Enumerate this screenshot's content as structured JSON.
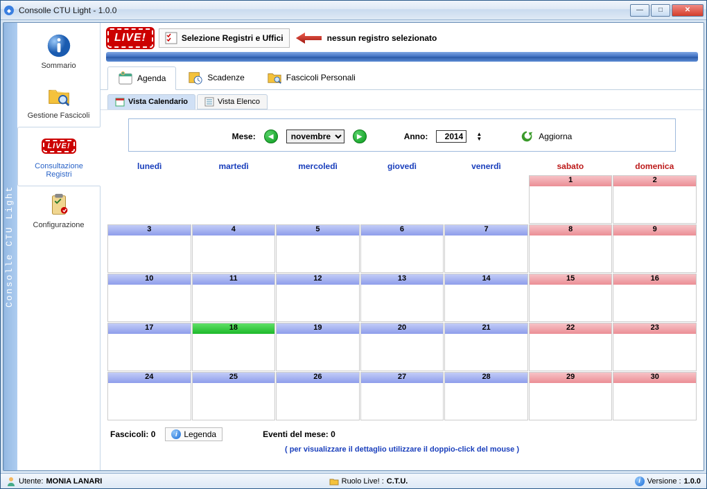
{
  "window": {
    "title": "Consolle CTU Light - 1.0.0"
  },
  "left_rail": "Consolle CTU Light",
  "sidebar": {
    "items": [
      {
        "label": "Sommario"
      },
      {
        "label": "Gestione Fascicoli"
      },
      {
        "label": "Consultazione Registri"
      },
      {
        "label": "Configurazione"
      }
    ]
  },
  "toolbar": {
    "live": "LIVE!",
    "selezione": "Selezione Registri e Uffici",
    "no_reg": "nessun registro selezionato"
  },
  "tabs1": {
    "agenda": "Agenda",
    "scadenze": "Scadenze",
    "fascicoli": "Fascicoli Personali"
  },
  "tabs2": {
    "calendario": "Vista Calendario",
    "elenco": "Vista Elenco"
  },
  "controls": {
    "mese_label": "Mese:",
    "month": "novembre",
    "anno_label": "Anno:",
    "year": "2014",
    "refresh": "Aggiorna"
  },
  "days": {
    "lun": "lunedì",
    "mar": "martedì",
    "mer": "mercoledì",
    "gio": "giovedì",
    "ven": "venerdì",
    "sab": "sabato",
    "dom": "domenica"
  },
  "calendar": {
    "today": 18,
    "weeks": [
      [
        "",
        "",
        "",
        "",
        "",
        "1",
        "2"
      ],
      [
        "3",
        "4",
        "5",
        "6",
        "7",
        "8",
        "9"
      ],
      [
        "10",
        "11",
        "12",
        "13",
        "14",
        "15",
        "16"
      ],
      [
        "17",
        "18",
        "19",
        "20",
        "21",
        "22",
        "23"
      ],
      [
        "24",
        "25",
        "26",
        "27",
        "28",
        "29",
        "30"
      ]
    ]
  },
  "footer": {
    "fascicoli": "Fascicoli:  0",
    "legenda": "Legenda",
    "eventi": "Eventi del mese:  0",
    "hint": "( per visualizzare il dettaglio utilizzare il doppio-click del mouse )"
  },
  "status": {
    "utente_label": "Utente: ",
    "utente": "MONIA LANARI",
    "ruolo_label": "Ruolo Live! : ",
    "ruolo": "C.T.U.",
    "versione_label": "Versione : ",
    "versione": "1.0.0"
  },
  "colors": {
    "weekday_header": "#1a3fbc",
    "weekend_header": "#bc1a1a",
    "weekday_cell": "linear-gradient(#c2ccf7,#8e9deb)",
    "weekend_cell": "linear-gradient(#f7c2c6,#eb8e95)",
    "today_cell": "linear-gradient(#5fe067,#1db82a)"
  }
}
